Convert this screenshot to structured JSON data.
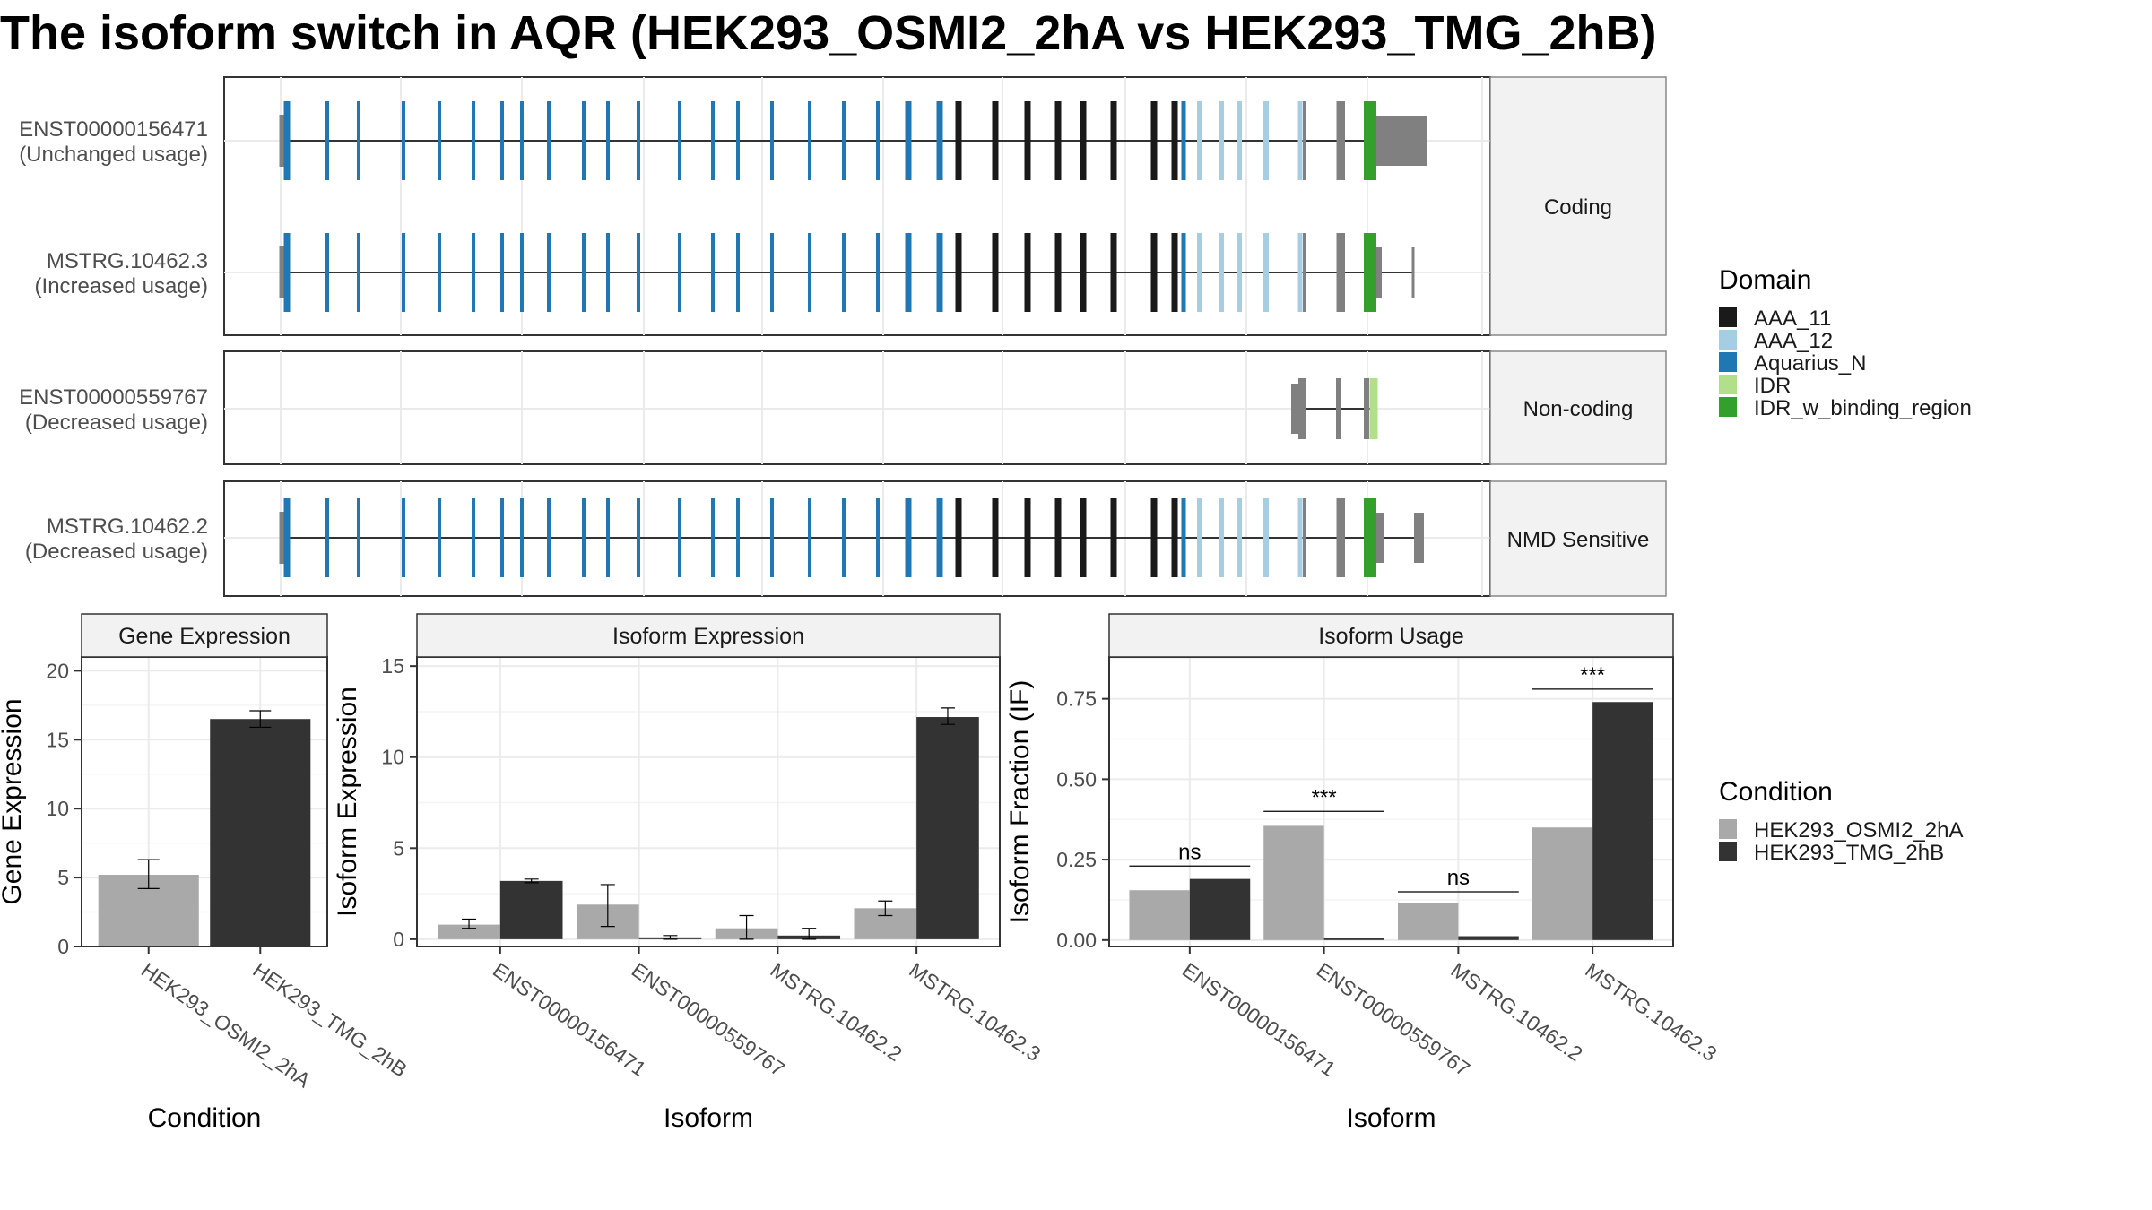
{
  "title": "The isoform switch in AQR (HEK293_OSMI2_2hA vs HEK293_TMG_2hB)",
  "colors": {
    "AAA_11": "#1a1a1a",
    "AAA_12": "#a6cee3",
    "Aquarius_N": "#1f78b4",
    "IDR": "#b2df8a",
    "IDR_w_binding_region": "#33a02c",
    "UTR": "#808080",
    "condition_A": "#a9a9a9",
    "condition_B": "#333333",
    "strip_fill": "#f2f2f2",
    "grid": "#ebebeb"
  },
  "structure": {
    "facets": [
      {
        "label": "Coding",
        "transcripts": [
          {
            "id": "ENST00000156471",
            "usage": "(Unchanged usage)"
          },
          {
            "id": "MSTRG.10462.3",
            "usage": "(Increased usage)"
          }
        ]
      },
      {
        "label": "Non-coding",
        "transcripts": [
          {
            "id": "ENST00000559767",
            "usage": "(Decreased usage)"
          }
        ]
      },
      {
        "label": "NMD Sensitive",
        "transcripts": [
          {
            "id": "MSTRG.10462.2",
            "usage": "(Decreased usage)"
          }
        ]
      }
    ]
  },
  "legends": {
    "domain_title": "Domain",
    "domain_items": [
      "AAA_11",
      "AAA_12",
      "Aquarius_N",
      "IDR",
      "IDR_w_binding_region"
    ],
    "condition_title": "Condition",
    "condition_items": [
      "HEK293_OSMI2_2hA",
      "HEK293_TMG_2hB"
    ]
  },
  "chart_data": [
    {
      "type": "bar",
      "title": "Gene Expression",
      "xlabel": "Condition",
      "ylabel": "Gene Expression",
      "ylim": [
        0,
        21
      ],
      "yticks": [
        0,
        5,
        10,
        15,
        20
      ],
      "categories": [
        "HEK293_OSMI2_2hA",
        "HEK293_TMG_2hB"
      ],
      "values": [
        5.2,
        16.5
      ],
      "errors": [
        [
          4.2,
          6.3
        ],
        [
          15.9,
          17.1
        ]
      ],
      "grid": true
    },
    {
      "type": "bar",
      "title": "Isoform Expression",
      "xlabel": "Isoform",
      "ylabel": "Isoform Expression",
      "ylim": [
        -0.4,
        15.5
      ],
      "yticks": [
        0,
        5,
        10,
        15
      ],
      "categories": [
        "ENST00000156471",
        "ENST00000559767",
        "MSTRG.10462.2",
        "MSTRG.10462.3"
      ],
      "series": [
        {
          "name": "HEK293_OSMI2_2hA",
          "values": [
            0.8,
            1.9,
            0.6,
            1.7
          ],
          "errors": [
            [
              0.6,
              1.1
            ],
            [
              0.7,
              3.0
            ],
            [
              0.0,
              1.3
            ],
            [
              1.3,
              2.1
            ]
          ]
        },
        {
          "name": "HEK293_TMG_2hB",
          "values": [
            3.2,
            0.1,
            0.2,
            12.2
          ],
          "errors": [
            [
              3.1,
              3.3
            ],
            [
              0.0,
              0.2
            ],
            [
              0.0,
              0.6
            ],
            [
              11.8,
              12.7
            ]
          ]
        }
      ],
      "grid": true
    },
    {
      "type": "bar",
      "title": "Isoform Usage",
      "xlabel": "Isoform",
      "ylabel": "Isoform Fraction (IF)",
      "ylim": [
        -0.02,
        0.88
      ],
      "yticks": [
        0,
        0.25,
        0.5,
        0.75
      ],
      "ytick_labels": [
        "0.00",
        "0.25",
        "0.50",
        "0.75"
      ],
      "categories": [
        "ENST00000156471",
        "ENST00000559767",
        "MSTRG.10462.2",
        "MSTRG.10462.3"
      ],
      "series": [
        {
          "name": "HEK293_OSMI2_2hA",
          "values": [
            0.155,
            0.355,
            0.115,
            0.35
          ]
        },
        {
          "name": "HEK293_TMG_2hB",
          "values": [
            0.19,
            0.005,
            0.012,
            0.74
          ]
        }
      ],
      "annotations": [
        {
          "category": "ENST00000156471",
          "text": "ns",
          "y": 0.23
        },
        {
          "category": "ENST00000559767",
          "text": "***",
          "y": 0.4
        },
        {
          "category": "MSTRG.10462.2",
          "text": "ns",
          "y": 0.15
        },
        {
          "category": "MSTRG.10462.3",
          "text": "***",
          "y": 0.78
        }
      ],
      "grid": true
    }
  ]
}
